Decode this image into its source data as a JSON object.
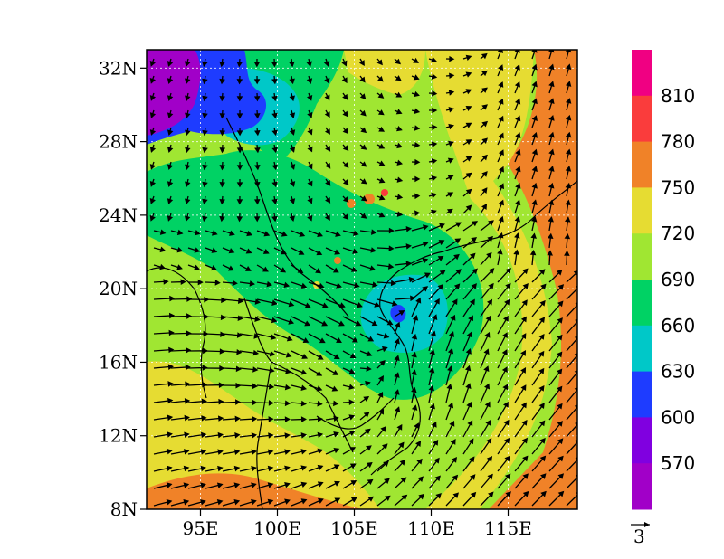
{
  "map": {
    "lon_range": [
      91.5,
      119.5
    ],
    "lat_range": [
      8,
      33
    ],
    "lat_ticks": [
      {
        "value": 8,
        "label": "8N"
      },
      {
        "value": 12,
        "label": "12N"
      },
      {
        "value": 16,
        "label": "16N"
      },
      {
        "value": 20,
        "label": "20N"
      },
      {
        "value": 24,
        "label": "24N"
      },
      {
        "value": 28,
        "label": "28N"
      },
      {
        "value": 32,
        "label": "32N"
      }
    ],
    "lon_ticks": [
      {
        "value": 95,
        "label": "95E"
      },
      {
        "value": 100,
        "label": "100E"
      },
      {
        "value": 105,
        "label": "105E"
      },
      {
        "value": 110,
        "label": "110E"
      },
      {
        "value": 115,
        "label": "115E"
      }
    ],
    "shaded_field": "filled contours (approximate regions)",
    "wind_vectors": "arrows showing flow; cyclonic circulation near 108E, 18N"
  },
  "colorbar": {
    "levels": [
      570,
      600,
      630,
      660,
      690,
      720,
      750,
      780,
      810
    ],
    "labels": [
      "570",
      "600",
      "630",
      "660",
      "690",
      "720",
      "750",
      "780",
      "810"
    ],
    "colors": [
      "#a100c8",
      "#8000e0",
      "#1e3cff",
      "#00c8c8",
      "#00d264",
      "#a0e632",
      "#e6dc32",
      "#f08228",
      "#fa3c3c",
      "#f00082"
    ]
  },
  "reference_vector": {
    "label": "3"
  },
  "colors": {
    "purple": "#a100c8",
    "violet": "#8000e0",
    "blue": "#1e3cff",
    "cyan": "#00c8c8",
    "green": "#00d264",
    "lightgreen": "#a0e632",
    "yellow": "#e6dc32",
    "orange": "#f08228",
    "red": "#fa3c3c",
    "magenta": "#f00082"
  }
}
